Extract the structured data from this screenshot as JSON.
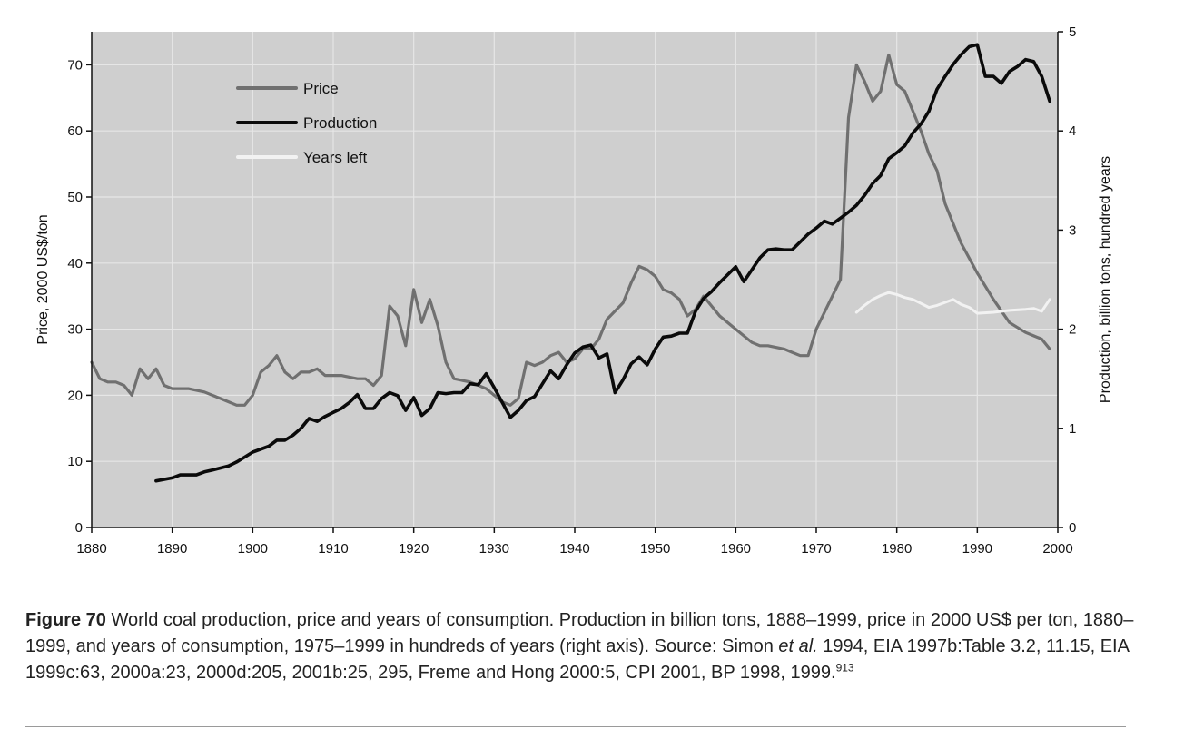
{
  "chart_data": {
    "type": "line",
    "x_axis": {
      "range": [
        1880,
        2000
      ],
      "ticks": [
        "1880",
        "1890",
        "1900",
        "1910",
        "1920",
        "1930",
        "1940",
        "1950",
        "1960",
        "1970",
        "1980",
        "1990",
        "2000"
      ]
    },
    "y_left": {
      "label": "Price, 2000 US$/ton",
      "range": [
        0,
        75
      ],
      "ticks": [
        "0",
        "10",
        "20",
        "30",
        "40",
        "50",
        "60",
        "70"
      ]
    },
    "y_right": {
      "label": "Production, billion tons, hundred years",
      "range": [
        0,
        5
      ],
      "ticks": [
        "0",
        "1",
        "2",
        "3",
        "4",
        "5"
      ]
    },
    "grid": true,
    "legend_position": "top-left",
    "series": [
      {
        "name": "Price",
        "axis": "left",
        "color": "#707070",
        "points": [
          [
            1880,
            25
          ],
          [
            1881,
            22.5
          ],
          [
            1882,
            22
          ],
          [
            1883,
            22
          ],
          [
            1884,
            21.5
          ],
          [
            1885,
            20
          ],
          [
            1886,
            24
          ],
          [
            1887,
            22.5
          ],
          [
            1888,
            24
          ],
          [
            1889,
            21.5
          ],
          [
            1890,
            21
          ],
          [
            1892,
            21
          ],
          [
            1894,
            20.5
          ],
          [
            1896,
            19.5
          ],
          [
            1898,
            18.5
          ],
          [
            1899,
            18.5
          ],
          [
            1900,
            20
          ],
          [
            1901,
            23.5
          ],
          [
            1902,
            24.5
          ],
          [
            1903,
            26
          ],
          [
            1904,
            23.5
          ],
          [
            1905,
            22.5
          ],
          [
            1906,
            23.5
          ],
          [
            1907,
            23.5
          ],
          [
            1908,
            24
          ],
          [
            1909,
            23
          ],
          [
            1911,
            23
          ],
          [
            1913,
            22.5
          ],
          [
            1914,
            22.5
          ],
          [
            1915,
            21.5
          ],
          [
            1916,
            23
          ],
          [
            1917,
            33.5
          ],
          [
            1918,
            32
          ],
          [
            1919,
            27.5
          ],
          [
            1920,
            36
          ],
          [
            1921,
            31
          ],
          [
            1922,
            34.5
          ],
          [
            1923,
            30.5
          ],
          [
            1924,
            25
          ],
          [
            1925,
            22.5
          ],
          [
            1927,
            22
          ],
          [
            1929,
            21
          ],
          [
            1930,
            20
          ],
          [
            1931,
            19
          ],
          [
            1932,
            18.5
          ],
          [
            1933,
            19.5
          ],
          [
            1934,
            25
          ],
          [
            1935,
            24.5
          ],
          [
            1936,
            25
          ],
          [
            1937,
            26
          ],
          [
            1938,
            26.5
          ],
          [
            1939,
            25
          ],
          [
            1940,
            25.5
          ],
          [
            1941,
            27
          ],
          [
            1942,
            27
          ],
          [
            1943,
            28.5
          ],
          [
            1944,
            31.5
          ],
          [
            1946,
            34
          ],
          [
            1947,
            37
          ],
          [
            1948,
            39.5
          ],
          [
            1949,
            39
          ],
          [
            1950,
            38
          ],
          [
            1951,
            36
          ],
          [
            1952,
            35.5
          ],
          [
            1953,
            34.5
          ],
          [
            1954,
            32
          ],
          [
            1955,
            33
          ],
          [
            1956,
            35
          ],
          [
            1958,
            32
          ],
          [
            1960,
            30
          ],
          [
            1962,
            28
          ],
          [
            1963,
            27.5
          ],
          [
            1964,
            27.5
          ],
          [
            1966,
            27
          ],
          [
            1967,
            26.5
          ],
          [
            1968,
            26
          ],
          [
            1969,
            26
          ],
          [
            1970,
            30
          ],
          [
            1972,
            35
          ],
          [
            1973,
            37.5
          ],
          [
            1974,
            62
          ],
          [
            1975,
            70
          ],
          [
            1976,
            67.5
          ],
          [
            1977,
            64.5
          ],
          [
            1978,
            66
          ],
          [
            1979,
            71.5
          ],
          [
            1980,
            67
          ],
          [
            1981,
            66
          ],
          [
            1982,
            63
          ],
          [
            1983,
            60
          ],
          [
            1984,
            56.5
          ],
          [
            1985,
            54
          ],
          [
            1986,
            49
          ],
          [
            1988,
            43
          ],
          [
            1990,
            38.5
          ],
          [
            1992,
            34.5
          ],
          [
            1994,
            31
          ],
          [
            1996,
            29.5
          ],
          [
            1997,
            29
          ],
          [
            1998,
            28.5
          ],
          [
            1999,
            27
          ]
        ]
      },
      {
        "name": "Production",
        "axis": "right",
        "color": "#0a0a0a",
        "points": [
          [
            1888,
            0.47
          ],
          [
            1890,
            0.5
          ],
          [
            1891,
            0.53
          ],
          [
            1892,
            0.53
          ],
          [
            1893,
            0.53
          ],
          [
            1894,
            0.56
          ],
          [
            1895,
            0.58
          ],
          [
            1897,
            0.62
          ],
          [
            1898,
            0.66
          ],
          [
            1899,
            0.71
          ],
          [
            1900,
            0.76
          ],
          [
            1902,
            0.82
          ],
          [
            1903,
            0.88
          ],
          [
            1904,
            0.88
          ],
          [
            1905,
            0.93
          ],
          [
            1906,
            1.0
          ],
          [
            1907,
            1.1
          ],
          [
            1908,
            1.07
          ],
          [
            1909,
            1.12
          ],
          [
            1910,
            1.16
          ],
          [
            1911,
            1.2
          ],
          [
            1912,
            1.26
          ],
          [
            1913,
            1.34
          ],
          [
            1914,
            1.2
          ],
          [
            1915,
            1.2
          ],
          [
            1916,
            1.3
          ],
          [
            1917,
            1.36
          ],
          [
            1918,
            1.33
          ],
          [
            1919,
            1.18
          ],
          [
            1920,
            1.31
          ],
          [
            1921,
            1.13
          ],
          [
            1922,
            1.2
          ],
          [
            1923,
            1.36
          ],
          [
            1924,
            1.35
          ],
          [
            1925,
            1.36
          ],
          [
            1926,
            1.36
          ],
          [
            1927,
            1.45
          ],
          [
            1928,
            1.44
          ],
          [
            1929,
            1.55
          ],
          [
            1930,
            1.41
          ],
          [
            1931,
            1.26
          ],
          [
            1932,
            1.11
          ],
          [
            1933,
            1.18
          ],
          [
            1934,
            1.28
          ],
          [
            1935,
            1.32
          ],
          [
            1936,
            1.45
          ],
          [
            1937,
            1.58
          ],
          [
            1938,
            1.5
          ],
          [
            1939,
            1.64
          ],
          [
            1940,
            1.76
          ],
          [
            1941,
            1.82
          ],
          [
            1942,
            1.84
          ],
          [
            1943,
            1.71
          ],
          [
            1944,
            1.75
          ],
          [
            1945,
            1.36
          ],
          [
            1946,
            1.49
          ],
          [
            1947,
            1.65
          ],
          [
            1948,
            1.72
          ],
          [
            1949,
            1.64
          ],
          [
            1950,
            1.8
          ],
          [
            1951,
            1.92
          ],
          [
            1952,
            1.93
          ],
          [
            1953,
            1.96
          ],
          [
            1954,
            1.96
          ],
          [
            1955,
            2.18
          ],
          [
            1956,
            2.31
          ],
          [
            1957,
            2.38
          ],
          [
            1958,
            2.47
          ],
          [
            1959,
            2.55
          ],
          [
            1960,
            2.63
          ],
          [
            1961,
            2.48
          ],
          [
            1962,
            2.6
          ],
          [
            1963,
            2.72
          ],
          [
            1964,
            2.8
          ],
          [
            1965,
            2.81
          ],
          [
            1966,
            2.8
          ],
          [
            1967,
            2.8
          ],
          [
            1968,
            2.88
          ],
          [
            1969,
            2.96
          ],
          [
            1970,
            3.02
          ],
          [
            1971,
            3.09
          ],
          [
            1972,
            3.06
          ],
          [
            1973,
            3.12
          ],
          [
            1974,
            3.18
          ],
          [
            1975,
            3.25
          ],
          [
            1976,
            3.35
          ],
          [
            1977,
            3.47
          ],
          [
            1978,
            3.55
          ],
          [
            1979,
            3.72
          ],
          [
            1980,
            3.78
          ],
          [
            1981,
            3.85
          ],
          [
            1982,
            3.98
          ],
          [
            1983,
            4.07
          ],
          [
            1984,
            4.2
          ],
          [
            1985,
            4.42
          ],
          [
            1986,
            4.55
          ],
          [
            1987,
            4.67
          ],
          [
            1988,
            4.77
          ],
          [
            1989,
            4.85
          ],
          [
            1990,
            4.87
          ],
          [
            1991,
            4.55
          ],
          [
            1992,
            4.55
          ],
          [
            1993,
            4.48
          ],
          [
            1994,
            4.6
          ],
          [
            1995,
            4.65
          ],
          [
            1996,
            4.72
          ],
          [
            1997,
            4.7
          ],
          [
            1998,
            4.55
          ],
          [
            1999,
            4.3
          ]
        ]
      },
      {
        "name": "Years left",
        "axis": "right",
        "color": "#f2f2f2",
        "points": [
          [
            1975,
            2.17
          ],
          [
            1976,
            2.24
          ],
          [
            1977,
            2.3
          ],
          [
            1978,
            2.34
          ],
          [
            1979,
            2.37
          ],
          [
            1980,
            2.35
          ],
          [
            1981,
            2.32
          ],
          [
            1982,
            2.3
          ],
          [
            1983,
            2.26
          ],
          [
            1984,
            2.22
          ],
          [
            1985,
            2.24
          ],
          [
            1986,
            2.27
          ],
          [
            1987,
            2.3
          ],
          [
            1988,
            2.25
          ],
          [
            1989,
            2.22
          ],
          [
            1990,
            2.16
          ],
          [
            1992,
            2.17
          ],
          [
            1994,
            2.19
          ],
          [
            1996,
            2.2
          ],
          [
            1997,
            2.21
          ],
          [
            1998,
            2.18
          ],
          [
            1999,
            2.3
          ]
        ]
      }
    ]
  },
  "caption": {
    "figure_label": "Figure 70",
    "text_before_italic": " World coal production, price and years of consumption. Production in billion tons, 1888–1999, price in 2000 US$ per ton, 1880–1999, and years of consumption, 1975–1999 in hundreds of years (right axis). Source: Simon ",
    "italic": "et al.",
    "text_after_italic": " 1994, EIA 1997b:Table 3.2, 11.15, EIA 1999c:63, 2000a:23, 2000d:205, 2001b:25, 295, Freme and Hong 2000:5, CPI 2001, BP 1998, 1999.",
    "superscript": "913"
  }
}
